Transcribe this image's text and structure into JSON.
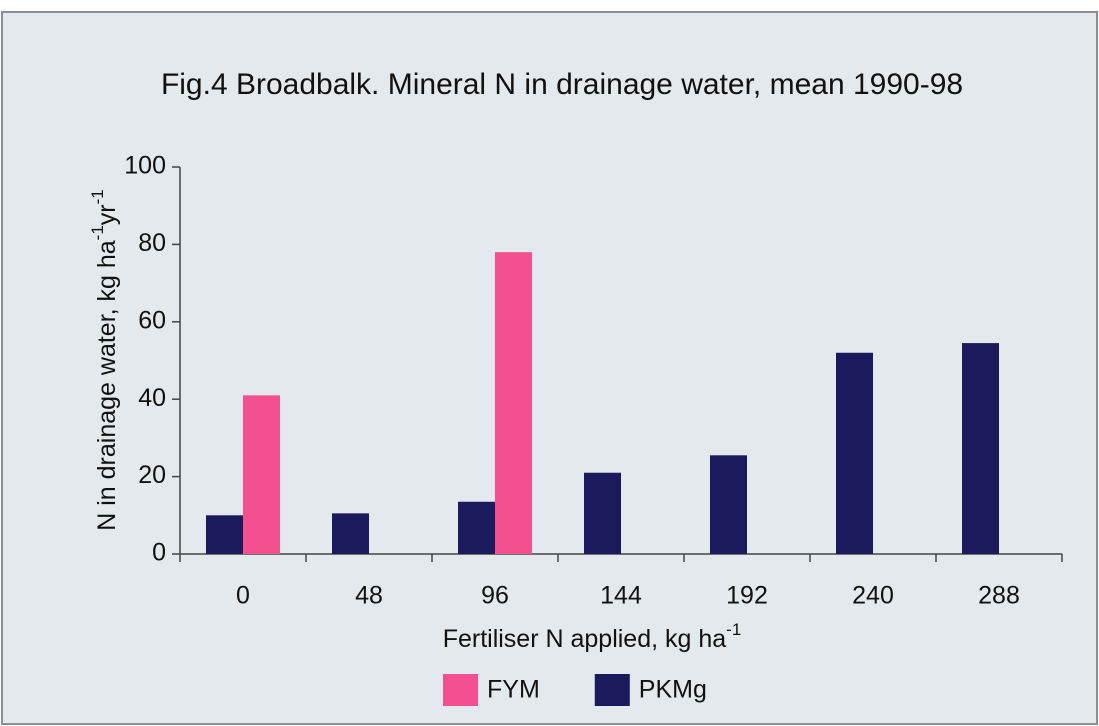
{
  "chart_data": {
    "type": "bar",
    "title": "Fig.4 Broadbalk. Mineral N in drainage water, mean 1990-98",
    "ylabel": [
      "N in drainage water, kg ha",
      "-1",
      "yr",
      "-1"
    ],
    "xlabel": [
      "Fertiliser N applied, kg ha",
      "-1"
    ],
    "categories": [
      "0",
      "48",
      "96",
      "144",
      "192",
      "240",
      "288"
    ],
    "series": [
      {
        "name": "PKMg",
        "color": "#1b1a5c",
        "values": [
          10,
          10.5,
          13.5,
          21,
          25.5,
          52,
          54.5
        ]
      },
      {
        "name": "FYM",
        "color": "#f2508e",
        "values": [
          41,
          null,
          78,
          null,
          null,
          null,
          null
        ]
      }
    ],
    "legend_order": [
      "FYM",
      "PKMg"
    ],
    "ylim": [
      0,
      100
    ],
    "yticks": [
      0,
      20,
      40,
      60,
      80,
      100
    ],
    "grid": false,
    "legend": "bottom"
  }
}
